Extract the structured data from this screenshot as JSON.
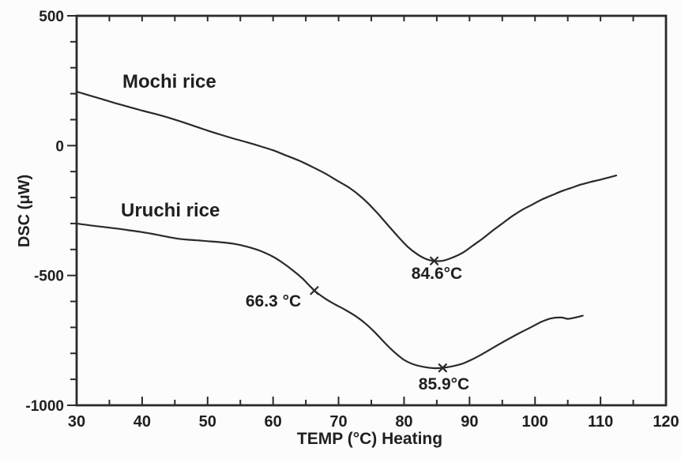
{
  "chart_data": {
    "type": "line",
    "title": "",
    "xlabel": "TEMP (°C) Heating",
    "ylabel": "DSC (μW)",
    "xlim": [
      30,
      120
    ],
    "ylim": [
      -1000,
      500
    ],
    "x_major_ticks": [
      30,
      40,
      50,
      60,
      70,
      80,
      90,
      100,
      110,
      120
    ],
    "x_minor_tick_step": 5,
    "y_major_ticks": [
      500,
      0,
      -500,
      -1000
    ],
    "y_minor_tick_step": 100,
    "grid": false,
    "frame": "box",
    "legend_position": "inline-labels",
    "line_color": "#2a2a2a",
    "background_color": "#fcfcfc",
    "series": [
      {
        "name": "Mochi rice",
        "points": [
          [
            30,
            208
          ],
          [
            32,
            193
          ],
          [
            34,
            178
          ],
          [
            36,
            163
          ],
          [
            38,
            149
          ],
          [
            40,
            135
          ],
          [
            42,
            122
          ],
          [
            44,
            108
          ],
          [
            46,
            92
          ],
          [
            48,
            75
          ],
          [
            50,
            58
          ],
          [
            52,
            42
          ],
          [
            54,
            27
          ],
          [
            56,
            13
          ],
          [
            58,
            -2
          ],
          [
            60,
            -18
          ],
          [
            62,
            -38
          ],
          [
            64,
            -58
          ],
          [
            66,
            -82
          ],
          [
            68,
            -108
          ],
          [
            70,
            -138
          ],
          [
            71.5,
            -160
          ],
          [
            73,
            -188
          ],
          [
            74.5,
            -222
          ],
          [
            76,
            -262
          ],
          [
            77.5,
            -305
          ],
          [
            79,
            -348
          ],
          [
            80.5,
            -388
          ],
          [
            82,
            -418
          ],
          [
            83.3,
            -436
          ],
          [
            84.6,
            -444
          ],
          [
            86,
            -443
          ],
          [
            87.5,
            -430
          ],
          [
            89,
            -412
          ],
          [
            90.5,
            -385
          ],
          [
            92,
            -358
          ],
          [
            93.5,
            -328
          ],
          [
            95,
            -300
          ],
          [
            96.5,
            -272
          ],
          [
            98,
            -248
          ],
          [
            99.5,
            -228
          ],
          [
            101,
            -208
          ],
          [
            102.5,
            -192
          ],
          [
            104,
            -176
          ],
          [
            105.5,
            -163
          ],
          [
            107,
            -150
          ],
          [
            108.5,
            -140
          ],
          [
            110,
            -131
          ],
          [
            111.2,
            -123
          ],
          [
            112.4,
            -115
          ]
        ]
      },
      {
        "name": "Uruchi rice",
        "points": [
          [
            30,
            -300
          ],
          [
            32,
            -307
          ],
          [
            34,
            -313
          ],
          [
            36,
            -319
          ],
          [
            38,
            -326
          ],
          [
            40,
            -333
          ],
          [
            42,
            -342
          ],
          [
            44,
            -352
          ],
          [
            46,
            -360
          ],
          [
            48,
            -364
          ],
          [
            50,
            -368
          ],
          [
            52,
            -372
          ],
          [
            54,
            -378
          ],
          [
            56,
            -389
          ],
          [
            58,
            -405
          ],
          [
            60,
            -428
          ],
          [
            61.5,
            -452
          ],
          [
            63,
            -480
          ],
          [
            64.5,
            -512
          ],
          [
            66.3,
            -558
          ],
          [
            68,
            -590
          ],
          [
            69.5,
            -612
          ],
          [
            71,
            -632
          ],
          [
            72.5,
            -655
          ],
          [
            74,
            -683
          ],
          [
            75.5,
            -718
          ],
          [
            77,
            -758
          ],
          [
            78.5,
            -795
          ],
          [
            80,
            -825
          ],
          [
            81.5,
            -843
          ],
          [
            83,
            -852
          ],
          [
            84.5,
            -857
          ],
          [
            85.9,
            -856
          ],
          [
            87.5,
            -849
          ],
          [
            89,
            -839
          ],
          [
            90.5,
            -822
          ],
          [
            92,
            -802
          ],
          [
            93.5,
            -780
          ],
          [
            95,
            -758
          ],
          [
            96.5,
            -737
          ],
          [
            98,
            -717
          ],
          [
            99.5,
            -698
          ],
          [
            101,
            -678
          ],
          [
            102.5,
            -665
          ],
          [
            104,
            -662
          ],
          [
            105,
            -667
          ],
          [
            106,
            -663
          ],
          [
            107.3,
            -655
          ]
        ]
      }
    ],
    "annotations": [
      {
        "text": "84.6°C",
        "series": "Mochi rice",
        "x": 84.6,
        "y": -444,
        "marker": "x"
      },
      {
        "text": "66.3 °C",
        "series": "Uruchi rice",
        "x": 66.3,
        "y": -558,
        "marker": "x"
      },
      {
        "text": "85.9°C",
        "series": "Uruchi rice",
        "x": 85.9,
        "y": -856,
        "marker": "x"
      }
    ]
  }
}
